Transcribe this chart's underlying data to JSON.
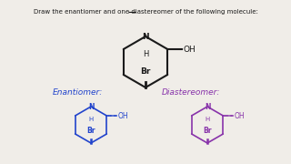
{
  "title_text": "Draw the enantiomer and one diastereomer of the following molecule:",
  "title_underline_word": "one",
  "bg_color": "#f0ede8",
  "black": "#1a1a1a",
  "blue": "#2244cc",
  "purple": "#8833aa",
  "enantiomer_label": "Enantiomer:",
  "diastereomer_label": "Diastereomer:"
}
